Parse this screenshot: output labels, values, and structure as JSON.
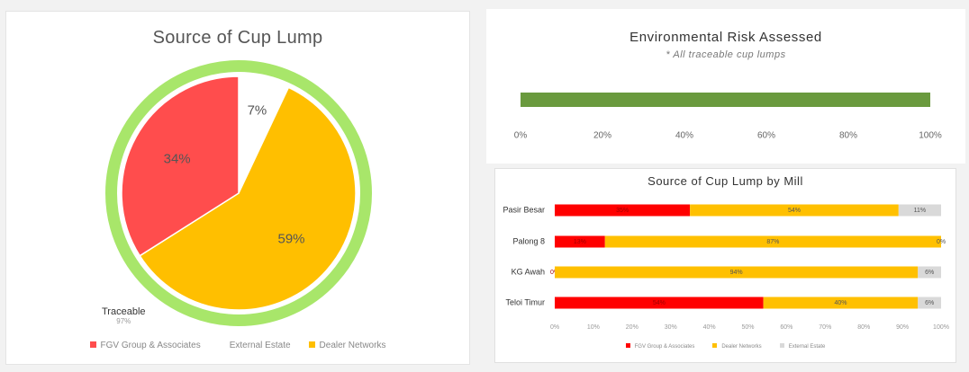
{
  "pie_chart": {
    "title": "Source of Cup Lump",
    "traceable": {
      "label": "Traceable",
      "value": "97%"
    },
    "legend": [
      {
        "label": "FGV Group & Associates",
        "color": "#ff4d4d"
      },
      {
        "label": "External Estate",
        "color": "#ffffff"
      },
      {
        "label": "Dealer Networks",
        "color": "#ffbf00"
      }
    ]
  },
  "risk_chart": {
    "title": "Environmental Risk Assessed",
    "subtitle": "* All traceable cup lumps"
  },
  "mill_chart": {
    "title": "Source of Cup Lump by Mill",
    "legend": [
      {
        "label": "FGV Group & Associates",
        "color": "#ff0000"
      },
      {
        "label": "Dealer Networks",
        "color": "#ffc000"
      },
      {
        "label": "External Estate",
        "color": "#d9d9d9"
      }
    ]
  },
  "chart_data": [
    {
      "type": "pie",
      "title": "Source of Cup Lump",
      "categories": [
        "FGV Group & Associates",
        "External Estate",
        "Dealer Networks"
      ],
      "values": [
        34,
        7,
        59
      ],
      "labels": [
        "34%",
        "7%",
        "59%"
      ],
      "colors": [
        "#ff4d4d",
        "#ffffff",
        "#ffbf00"
      ],
      "outer_ring": {
        "label": "Traceable",
        "value": 97,
        "color": "#a8e66a"
      },
      "legend_position": "bottom"
    },
    {
      "type": "bar",
      "orientation": "horizontal",
      "title": "Environmental Risk Assessed",
      "subtitle": "* All traceable cup lumps",
      "values": [
        100
      ],
      "color": "#6a9a3e",
      "xlim": [
        0,
        100
      ],
      "ticks": [
        "0%",
        "20%",
        "40%",
        "60%",
        "80%",
        "100%"
      ]
    },
    {
      "type": "bar",
      "orientation": "horizontal",
      "stacked": true,
      "title": "Source of Cup Lump by Mill",
      "categories": [
        "Pasir Besar",
        "Palong 8",
        "KG Awah",
        "Teloi Timur"
      ],
      "series": [
        {
          "name": "FGV Group & Associates",
          "color": "#ff0000",
          "values": [
            35,
            13,
            0,
            54
          ],
          "labels": [
            "35%",
            "13%",
            "0%",
            "54%"
          ]
        },
        {
          "name": "Dealer Networks",
          "color": "#ffc000",
          "values": [
            54,
            87,
            94,
            40
          ],
          "labels": [
            "54%",
            "87%",
            "94%",
            "40%"
          ]
        },
        {
          "name": "External Estate",
          "color": "#d9d9d9",
          "values": [
            11,
            0,
            6,
            6
          ],
          "labels": [
            "11%",
            "0%",
            "6%",
            "6%"
          ]
        }
      ],
      "xlim": [
        0,
        100
      ],
      "ticks": [
        "0%",
        "10%",
        "20%",
        "30%",
        "40%",
        "50%",
        "60%",
        "70%",
        "80%",
        "90%",
        "100%"
      ],
      "legend_position": "bottom"
    }
  ]
}
